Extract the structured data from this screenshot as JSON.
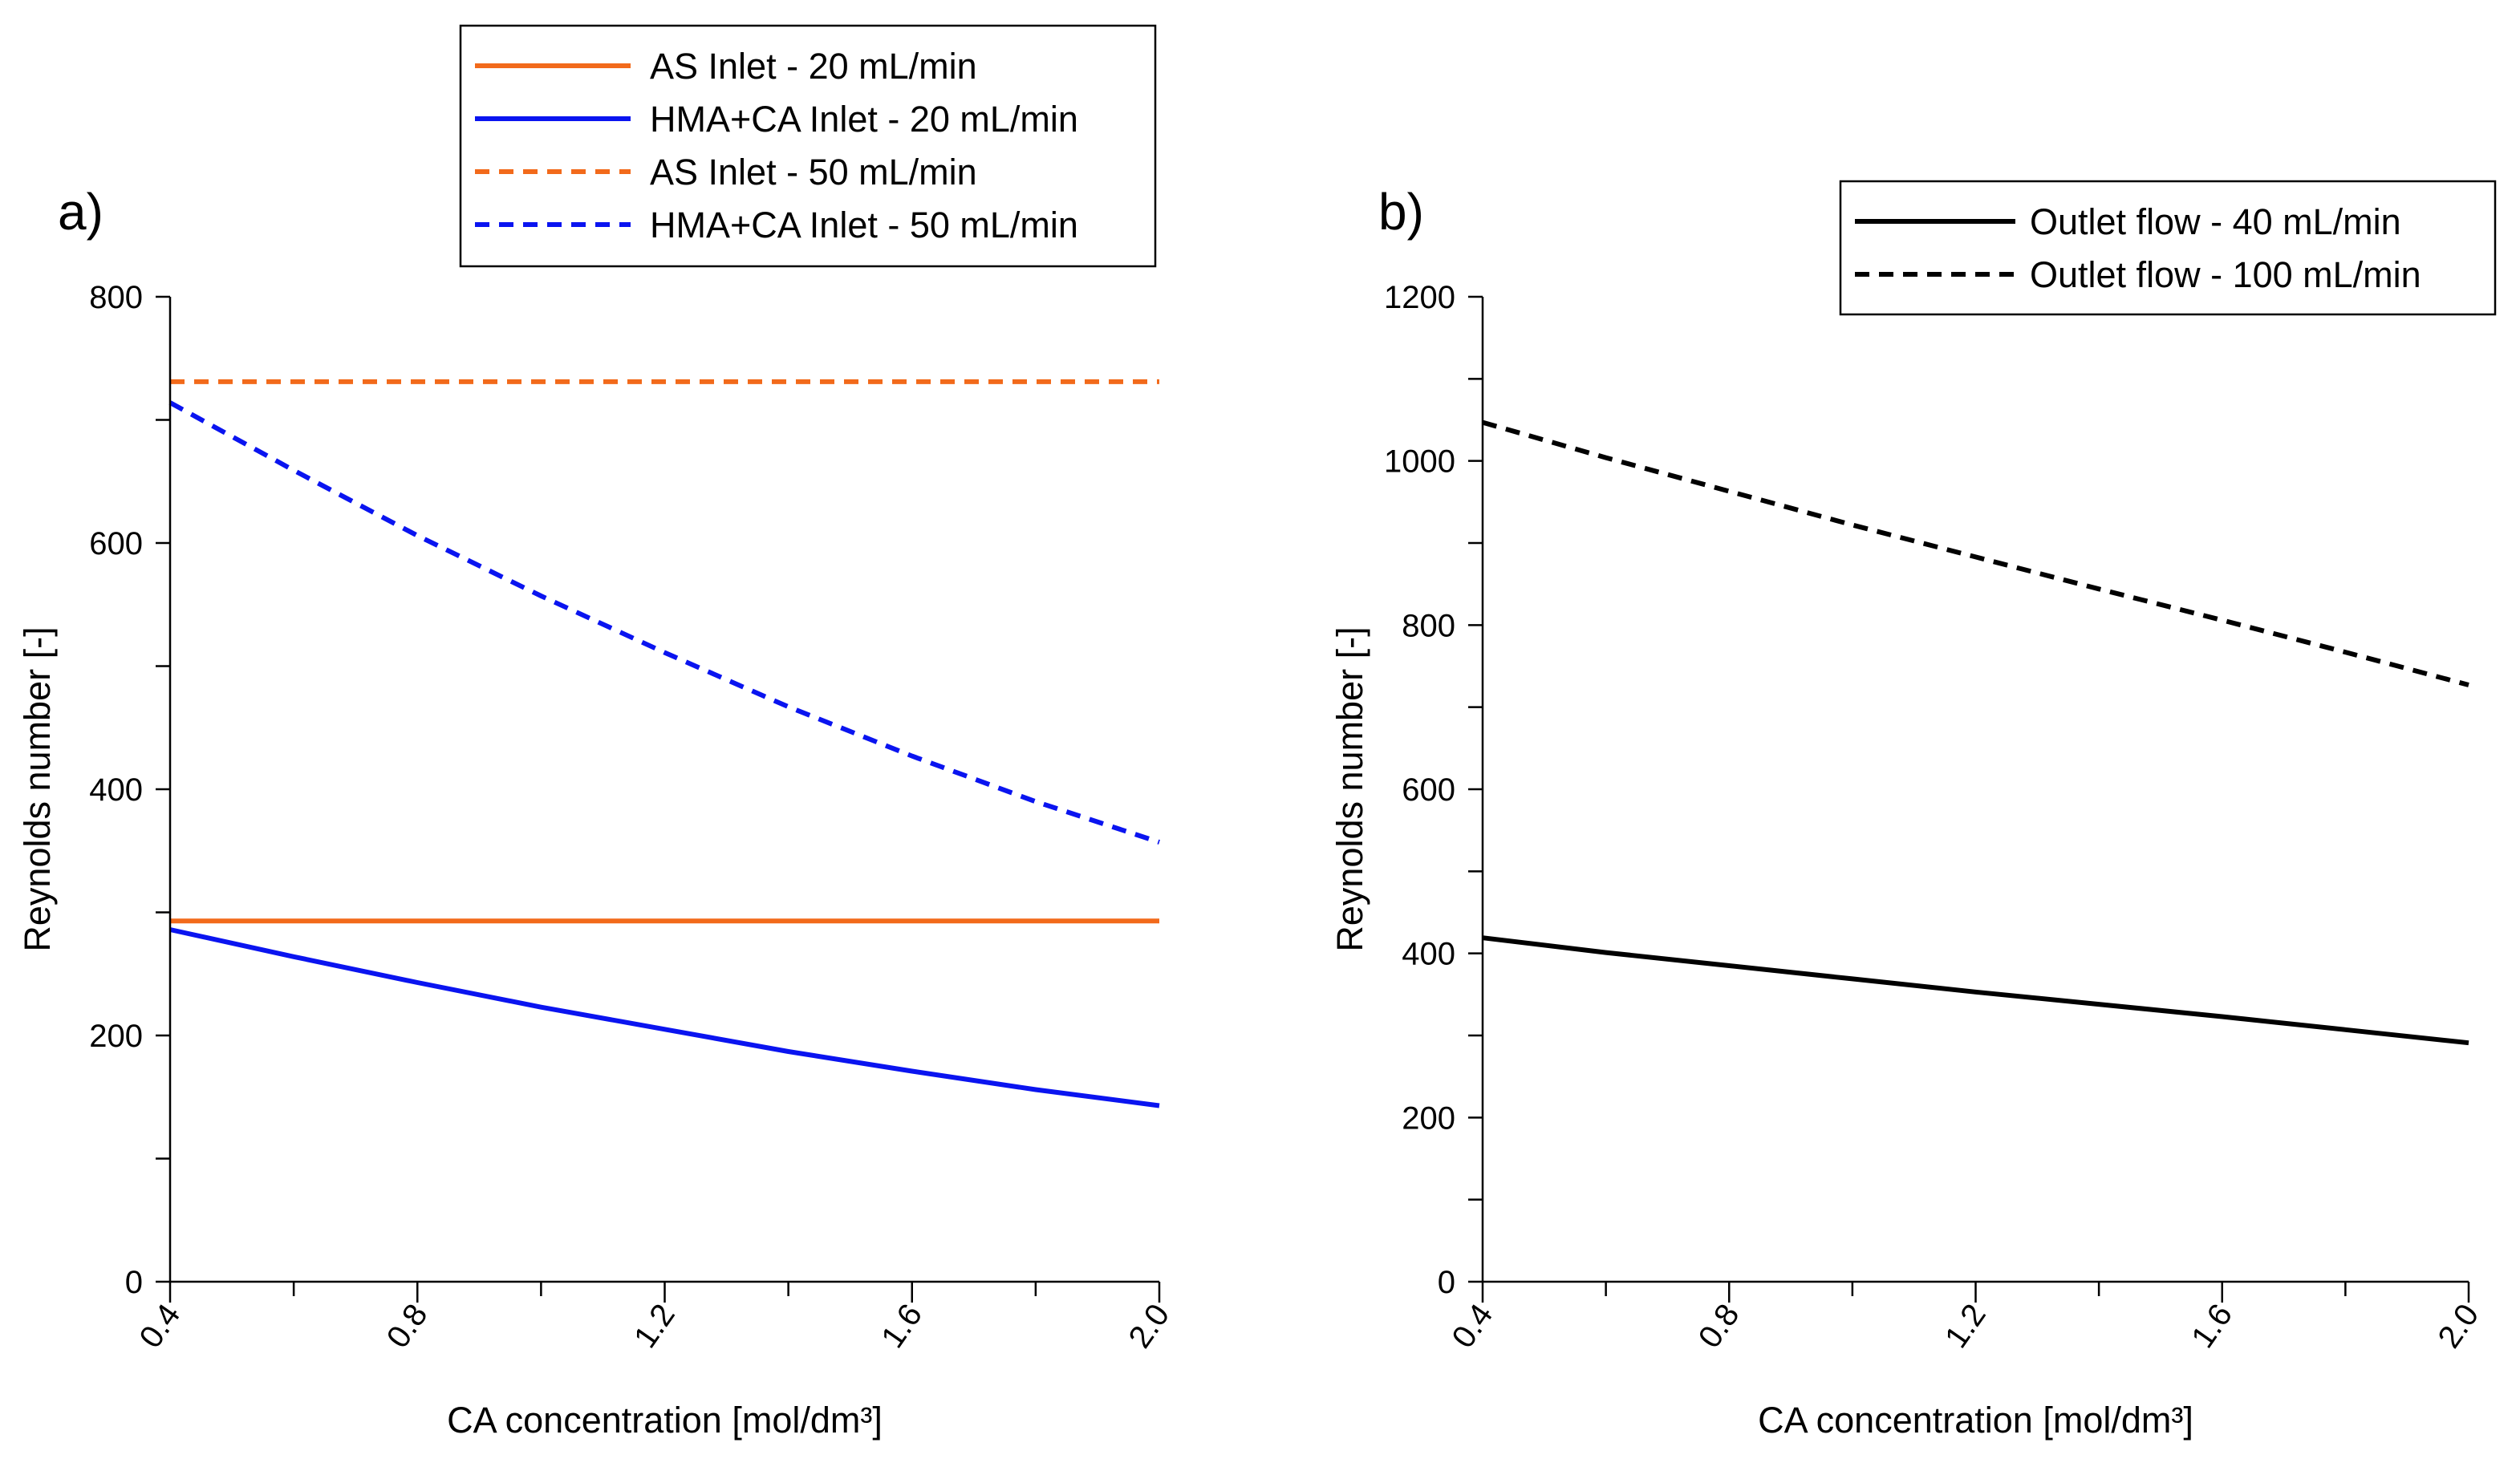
{
  "chart_data": [
    {
      "type": "line",
      "panel_label": "a)",
      "xlabel": "CA concentration [mol/dm³]",
      "ylabel": "Reynolds number [-]",
      "xlim": [
        0.4,
        2.0
      ],
      "ylim": [
        0,
        800
      ],
      "xticks": [
        0.4,
        0.8,
        1.2,
        1.6,
        2.0
      ],
      "xtick_labels": [
        "0.4",
        "0.8",
        "1.2",
        "1.6",
        "2.0"
      ],
      "xminor_step": 0.2,
      "yticks": [
        0,
        200,
        400,
        600,
        800
      ],
      "ytick_labels": [
        "0",
        "200",
        "400",
        "600",
        "800"
      ],
      "yminor_step": 100,
      "grid": false,
      "legend_position": "top-center",
      "series": [
        {
          "name": "AS Inlet - 20 mL/min",
          "color": "#F26A1B",
          "dash": "solid",
          "x": [
            0.4,
            0.6,
            0.8,
            1.0,
            1.2,
            1.4,
            1.6,
            1.8,
            2.0
          ],
          "y": [
            293,
            293,
            293,
            293,
            293,
            293,
            293,
            293,
            293
          ]
        },
        {
          "name": "HMA+CA Inlet - 20 mL/min",
          "color": "#0A14F0",
          "dash": "solid",
          "x": [
            0.4,
            0.6,
            0.8,
            1.0,
            1.2,
            1.4,
            1.6,
            1.8,
            2.0
          ],
          "y": [
            286,
            264,
            243,
            223,
            205,
            187,
            171,
            156,
            143
          ]
        },
        {
          "name": "AS Inlet - 50 mL/min",
          "color": "#F26A1B",
          "dash": "dashed",
          "x": [
            0.4,
            0.6,
            0.8,
            1.0,
            1.2,
            1.4,
            1.6,
            1.8,
            2.0
          ],
          "y": [
            731,
            731,
            731,
            731,
            731,
            731,
            731,
            731,
            731
          ]
        },
        {
          "name": "HMA+CA Inlet - 50 mL/min",
          "color": "#0A14F0",
          "dash": "dashed",
          "x": [
            0.4,
            0.6,
            0.8,
            1.0,
            1.2,
            1.4,
            1.6,
            1.8,
            2.0
          ],
          "y": [
            714,
            659,
            606,
            557,
            511,
            467,
            427,
            390,
            357
          ]
        }
      ]
    },
    {
      "type": "line",
      "panel_label": "b)",
      "xlabel": "CA concentration [mol/dm³]",
      "ylabel": "Reynolds number [-]",
      "xlim": [
        0.4,
        2.0
      ],
      "ylim": [
        0,
        1200
      ],
      "xticks": [
        0.4,
        0.8,
        1.2,
        1.6,
        2.0
      ],
      "xtick_labels": [
        "0.4",
        "0.8",
        "1.2",
        "1.6",
        "2.0"
      ],
      "xminor_step": 0.2,
      "yticks": [
        0,
        200,
        400,
        600,
        800,
        1000,
        1200
      ],
      "ytick_labels": [
        "0",
        "200",
        "400",
        "600",
        "800",
        "1000",
        "1200"
      ],
      "yminor_step": 100,
      "grid": false,
      "legend_position": "top-right",
      "series": [
        {
          "name": "Outlet flow - 40 mL/min",
          "color": "#000000",
          "dash": "solid",
          "x": [
            0.4,
            0.6,
            0.8,
            1.0,
            1.2,
            1.4,
            1.6,
            1.8,
            2.0
          ],
          "y": [
            419,
            401,
            385,
            369,
            353,
            338,
            323,
            307,
            291
          ]
        },
        {
          "name": "Outlet flow - 100 mL/min",
          "color": "#000000",
          "dash": "dashed",
          "x": [
            0.4,
            0.6,
            0.8,
            1.0,
            1.2,
            1.4,
            1.6,
            1.8,
            2.0
          ],
          "y": [
            1047,
            1004,
            963,
            922,
            883,
            844,
            806,
            767,
            727
          ]
        }
      ]
    }
  ]
}
